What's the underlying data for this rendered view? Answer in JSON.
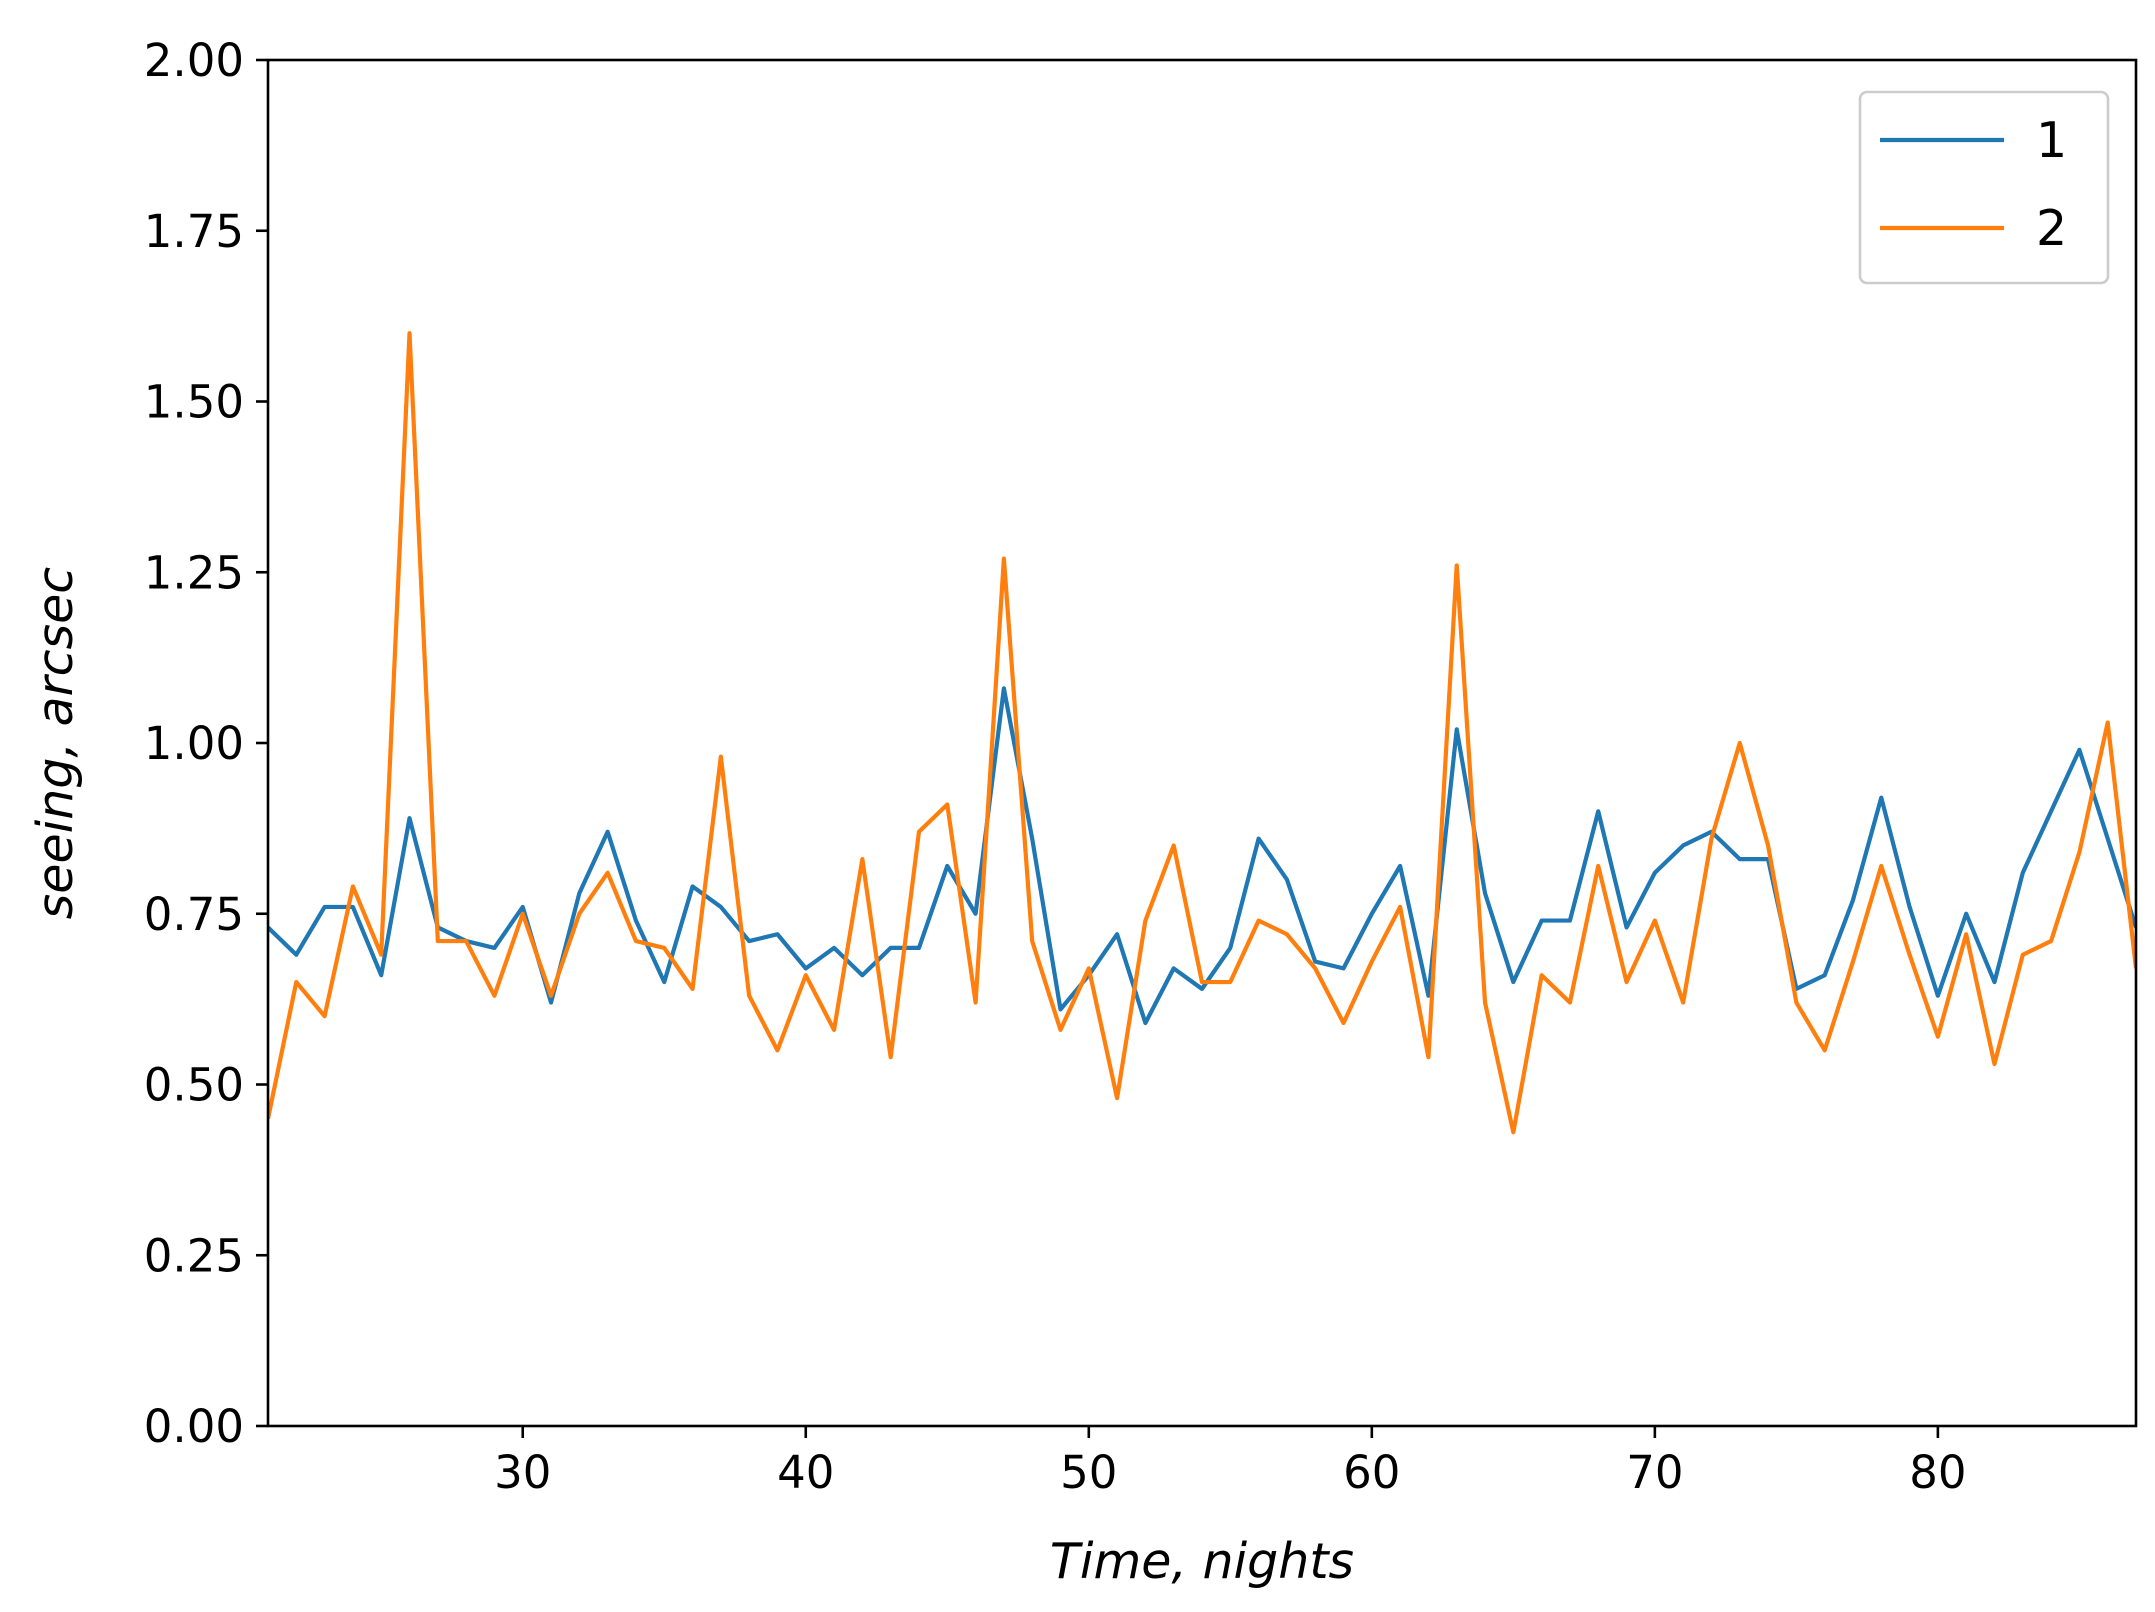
{
  "chart_data": {
    "type": "line",
    "title": "",
    "xlabel": "Time, nights",
    "ylabel": "seeing, arcsec",
    "xlim": [
      21,
      87
    ],
    "ylim": [
      0,
      2
    ],
    "xticks": [
      30,
      40,
      50,
      60,
      70,
      80
    ],
    "xtick_labels": [
      "30",
      "40",
      "50",
      "60",
      "70",
      "80"
    ],
    "yticks": [
      0,
      0.25,
      0.5,
      0.75,
      1.0,
      1.25,
      1.5,
      1.75,
      2.0
    ],
    "ytick_labels": [
      "0.00",
      "0.25",
      "0.50",
      "0.75",
      "1.00",
      "1.25",
      "1.50",
      "1.75",
      "2.00"
    ],
    "grid": false,
    "legend_position": "top-right",
    "x": [
      21,
      22,
      23,
      24,
      25,
      26,
      27,
      28,
      29,
      30,
      31,
      32,
      33,
      34,
      35,
      36,
      37,
      38,
      39,
      40,
      41,
      42,
      43,
      44,
      45,
      46,
      47,
      48,
      49,
      50,
      51,
      52,
      53,
      54,
      55,
      56,
      57,
      58,
      59,
      60,
      61,
      62,
      63,
      64,
      65,
      66,
      67,
      68,
      69,
      70,
      71,
      72,
      73,
      74,
      75,
      76,
      77,
      78,
      79,
      80,
      81,
      82,
      83,
      84,
      85,
      86,
      87
    ],
    "series": [
      {
        "name": "1",
        "color": "#1f77b4",
        "values": [
          0.73,
          0.69,
          0.76,
          0.76,
          0.66,
          0.89,
          0.73,
          0.71,
          0.7,
          0.76,
          0.62,
          0.78,
          0.87,
          0.74,
          0.65,
          0.79,
          0.76,
          0.71,
          0.72,
          0.67,
          0.7,
          0.66,
          0.7,
          0.7,
          0.82,
          0.75,
          1.08,
          0.86,
          0.61,
          0.66,
          0.72,
          0.59,
          0.67,
          0.64,
          0.7,
          0.86,
          0.8,
          0.68,
          0.67,
          0.75,
          0.82,
          0.63,
          1.02,
          0.78,
          0.65,
          0.74,
          0.74,
          0.9,
          0.73,
          0.81,
          0.85,
          0.87,
          0.83,
          0.83,
          0.64,
          0.66,
          0.77,
          0.92,
          0.76,
          0.63,
          0.75,
          0.65,
          0.81,
          0.9,
          0.99,
          0.86,
          0.73
        ]
      },
      {
        "name": "2",
        "color": "#ff7f0e",
        "values": [
          0.45,
          0.65,
          0.6,
          0.79,
          0.69,
          1.6,
          0.71,
          0.71,
          0.63,
          0.75,
          0.63,
          0.75,
          0.81,
          0.71,
          0.7,
          0.64,
          0.98,
          0.63,
          0.55,
          0.66,
          0.58,
          0.83,
          0.54,
          0.87,
          0.91,
          0.62,
          1.27,
          0.71,
          0.58,
          0.67,
          0.48,
          0.74,
          0.85,
          0.65,
          0.65,
          0.74,
          0.72,
          0.67,
          0.59,
          0.68,
          0.76,
          0.54,
          1.26,
          0.62,
          0.43,
          0.66,
          0.62,
          0.82,
          0.65,
          0.74,
          0.62,
          0.86,
          1.0,
          0.85,
          0.62,
          0.55,
          0.68,
          0.82,
          0.69,
          0.57,
          0.72,
          0.53,
          0.69,
          0.71,
          0.84,
          1.03,
          0.67
        ]
      }
    ]
  }
}
